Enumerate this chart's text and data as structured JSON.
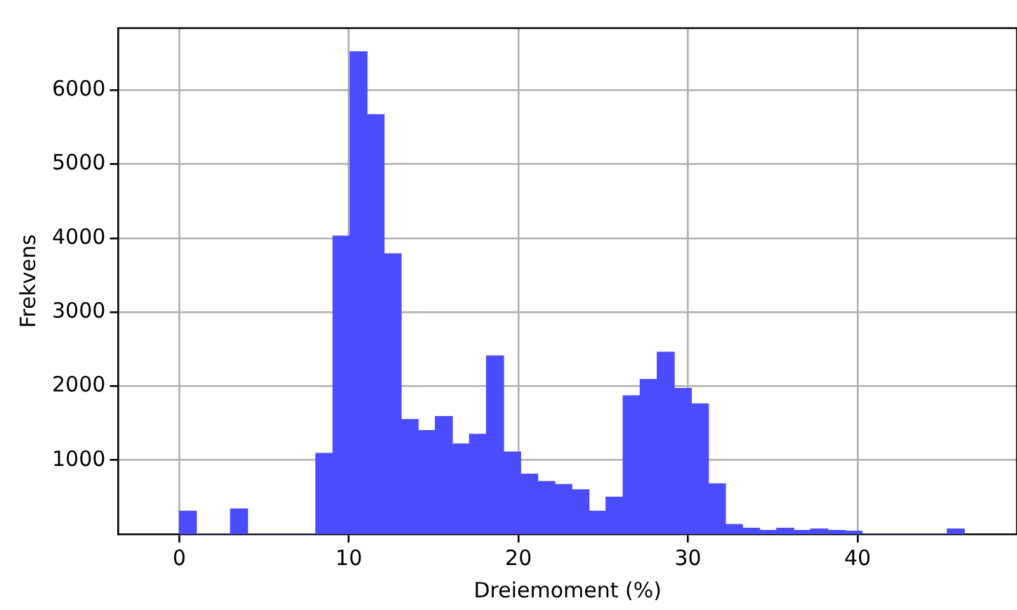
{
  "chart_data": {
    "type": "histogram",
    "xlabel": "Dreiemoment (%)",
    "ylabel": "Frekvens",
    "bins": [
      0,
      1.01,
      2.01,
      3.02,
      4.03,
      5.03,
      6.04,
      7.05,
      8.05,
      9.06,
      10.07,
      11.07,
      12.08,
      13.08,
      14.09,
      15.1,
      16.1,
      17.11,
      18.12,
      19.12,
      20.13,
      21.14,
      22.14,
      23.15,
      24.16,
      25.16,
      26.17,
      27.18,
      28.18,
      29.19,
      30.2,
      31.2,
      32.21,
      33.21,
      34.22,
      35.23,
      36.23,
      37.24,
      38.25,
      39.25,
      40.26,
      41.27,
      42.27,
      43.28,
      44.29,
      45.29,
      46.3
    ],
    "values": [
      310,
      0,
      0,
      340,
      0,
      0,
      0,
      0,
      1090,
      4030,
      6520,
      5670,
      3790,
      1550,
      1400,
      1590,
      1220,
      1350,
      2410,
      1110,
      810,
      710,
      670,
      600,
      310,
      500,
      1870,
      2090,
      2460,
      1970,
      1760,
      680,
      130,
      80,
      50,
      80,
      50,
      70,
      50,
      40,
      0,
      0,
      0,
      0,
      0,
      70
    ],
    "color": "#4b4bff",
    "xlim": [
      -3.6,
      49.4
    ],
    "ylim": [
      0,
      6840
    ],
    "xticks": [
      0,
      10,
      20,
      30,
      40
    ],
    "yticks": [
      1000,
      2000,
      3000,
      4000,
      5000,
      6000
    ],
    "grid": true
  }
}
